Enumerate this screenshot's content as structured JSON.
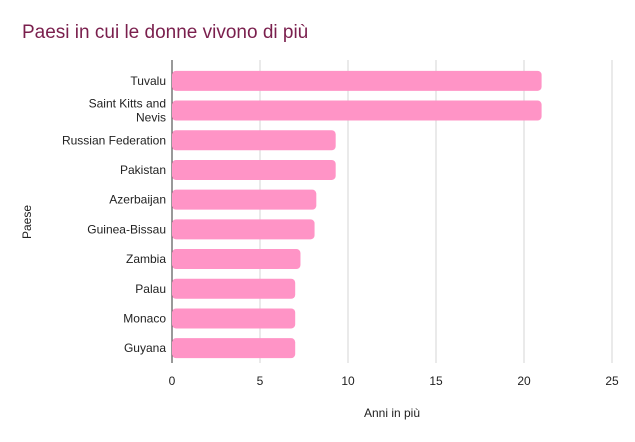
{
  "chart_data": {
    "type": "bar",
    "orientation": "horizontal",
    "title": "Paesi in cui le donne vivono di più",
    "xlabel": "Anni in più",
    "ylabel": "Paese",
    "categories": [
      [
        "Tuvalu"
      ],
      [
        "Saint Kitts and",
        "Nevis"
      ],
      [
        "Russian Federation"
      ],
      [
        "Pakistan"
      ],
      [
        "Azerbaijan"
      ],
      [
        "Guinea-Bissau"
      ],
      [
        "Zambia"
      ],
      [
        "Palau"
      ],
      [
        "Monaco"
      ],
      [
        "Guyana"
      ]
    ],
    "values": [
      21,
      21,
      9.3,
      9.3,
      8.2,
      8.1,
      7.3,
      7.0,
      7.0,
      7.0
    ],
    "xlim": [
      0,
      25
    ],
    "xticks": [
      "0",
      "5",
      "10",
      "15",
      "20",
      "25"
    ],
    "grid": true,
    "bar_color": "#ff94c6",
    "title_color": "#7a1f4d"
  }
}
